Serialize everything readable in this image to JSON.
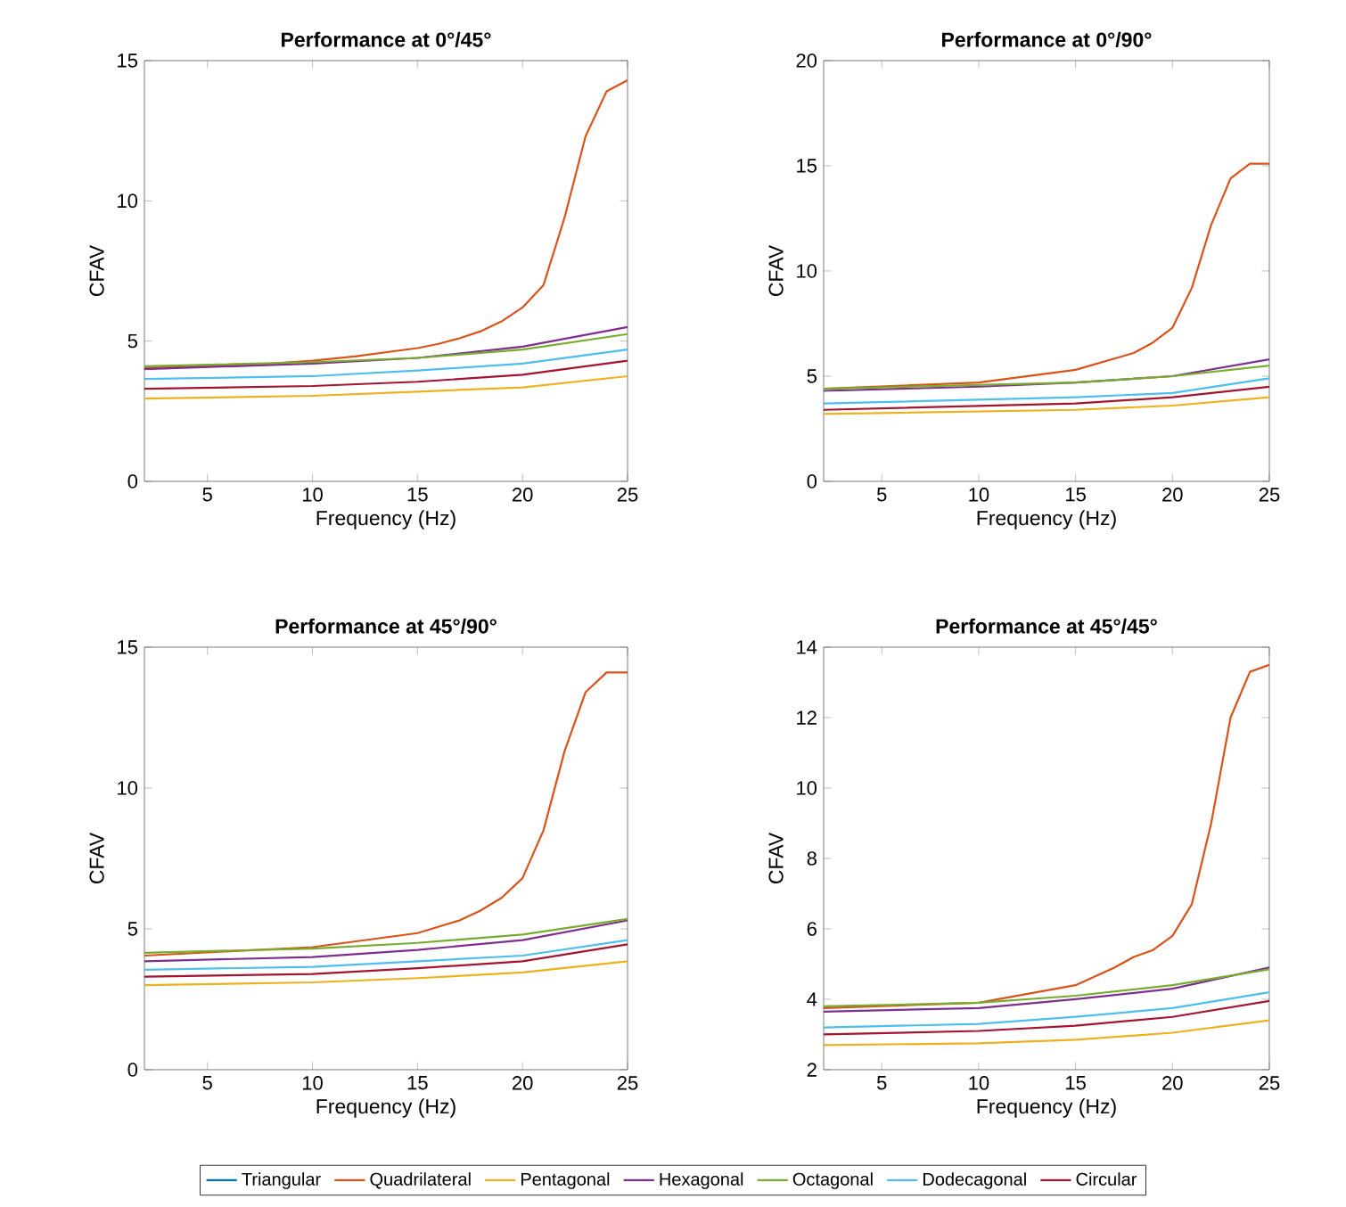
{
  "chart_data": [
    {
      "type": "line",
      "title": "Performance at 0°/45°",
      "xlabel": "Frequency (Hz)",
      "ylabel": "CFAV",
      "xlim": [
        2,
        25
      ],
      "ylim": [
        0,
        15
      ],
      "xticks": [
        5,
        10,
        15,
        20,
        25
      ],
      "yticks": [
        0,
        5,
        10,
        15
      ],
      "marker": "none",
      "line_style": "solid",
      "legend": false,
      "series": [
        {
          "color": "#d95319",
          "x": [
            2,
            5,
            8,
            10,
            12,
            14,
            15,
            16,
            17,
            18,
            19,
            20,
            21,
            22,
            23,
            24,
            25
          ],
          "values": [
            4.05,
            4.1,
            4.2,
            4.3,
            4.45,
            4.65,
            4.75,
            4.9,
            5.1,
            5.35,
            5.7,
            6.2,
            7.0,
            9.4,
            12.3,
            13.9,
            14.3
          ]
        },
        {
          "color": "#edb120",
          "x": [
            2,
            10,
            15,
            20,
            25
          ],
          "values": [
            2.95,
            3.05,
            3.2,
            3.35,
            3.75
          ]
        },
        {
          "color": "#7e2f8e",
          "x": [
            2,
            10,
            15,
            20,
            25
          ],
          "values": [
            4.0,
            4.2,
            4.4,
            4.8,
            5.5
          ]
        },
        {
          "color": "#77ac30",
          "x": [
            2,
            10,
            15,
            20,
            25
          ],
          "values": [
            4.1,
            4.25,
            4.4,
            4.7,
            5.25
          ]
        },
        {
          "color": "#4dbeee",
          "x": [
            2,
            10,
            15,
            20,
            25
          ],
          "values": [
            3.65,
            3.75,
            3.95,
            4.2,
            4.7
          ]
        },
        {
          "color": "#a2142f",
          "x": [
            2,
            10,
            15,
            20,
            25
          ],
          "values": [
            3.3,
            3.4,
            3.55,
            3.8,
            4.3
          ]
        }
      ]
    },
    {
      "type": "line",
      "title": "Performance at 0°/90°",
      "xlabel": "Frequency (Hz)",
      "ylabel": "CFAV",
      "xlim": [
        2,
        25
      ],
      "ylim": [
        0,
        20
      ],
      "xticks": [
        5,
        10,
        15,
        20,
        25
      ],
      "yticks": [
        0,
        5,
        10,
        15,
        20
      ],
      "marker": "none",
      "line_style": "solid",
      "legend": false,
      "series": [
        {
          "color": "#d95319",
          "x": [
            2,
            10,
            15,
            18,
            19,
            20,
            21,
            22,
            23,
            24,
            25
          ],
          "values": [
            4.4,
            4.7,
            5.3,
            6.1,
            6.6,
            7.3,
            9.2,
            12.2,
            14.4,
            15.1,
            15.1
          ]
        },
        {
          "color": "#edb120",
          "x": [
            2,
            15,
            20,
            25
          ],
          "values": [
            3.2,
            3.4,
            3.6,
            4.0
          ]
        },
        {
          "color": "#7e2f8e",
          "x": [
            2,
            10,
            15,
            20,
            25
          ],
          "values": [
            4.3,
            4.5,
            4.7,
            5.0,
            5.8
          ]
        },
        {
          "color": "#77ac30",
          "x": [
            2,
            15,
            20,
            25
          ],
          "values": [
            4.4,
            4.7,
            5.0,
            5.5
          ]
        },
        {
          "color": "#4dbeee",
          "x": [
            2,
            15,
            20,
            25
          ],
          "values": [
            3.7,
            4.0,
            4.2,
            4.9
          ]
        },
        {
          "color": "#a2142f",
          "x": [
            2,
            15,
            20,
            25
          ],
          "values": [
            3.4,
            3.7,
            4.0,
            4.5
          ]
        }
      ]
    },
    {
      "type": "line",
      "title": "Performance at 45°/90°",
      "xlabel": "Frequency (Hz)",
      "ylabel": "CFAV",
      "xlim": [
        2,
        25
      ],
      "ylim": [
        0,
        15
      ],
      "xticks": [
        5,
        10,
        15,
        20,
        25
      ],
      "yticks": [
        0,
        5,
        10,
        15
      ],
      "marker": "none",
      "line_style": "solid",
      "legend": false,
      "series": [
        {
          "color": "#d95319",
          "x": [
            2,
            10,
            15,
            17,
            18,
            19,
            20,
            21,
            22,
            23,
            24,
            25
          ],
          "values": [
            4.05,
            4.35,
            4.85,
            5.3,
            5.65,
            6.1,
            6.8,
            8.5,
            11.3,
            13.4,
            14.1,
            14.1
          ]
        },
        {
          "color": "#edb120",
          "x": [
            2,
            10,
            15,
            20,
            25
          ],
          "values": [
            3.0,
            3.1,
            3.25,
            3.45,
            3.85
          ]
        },
        {
          "color": "#7e2f8e",
          "x": [
            2,
            10,
            15,
            20,
            25
          ],
          "values": [
            3.85,
            4.0,
            4.25,
            4.6,
            5.3
          ]
        },
        {
          "color": "#77ac30",
          "x": [
            2,
            10,
            15,
            20,
            25
          ],
          "values": [
            4.15,
            4.3,
            4.5,
            4.8,
            5.35
          ]
        },
        {
          "color": "#4dbeee",
          "x": [
            2,
            10,
            15,
            20,
            25
          ],
          "values": [
            3.55,
            3.65,
            3.85,
            4.05,
            4.6
          ]
        },
        {
          "color": "#a2142f",
          "x": [
            2,
            10,
            15,
            20,
            25
          ],
          "values": [
            3.3,
            3.4,
            3.6,
            3.85,
            4.45
          ]
        }
      ]
    },
    {
      "type": "line",
      "title": "Performance at 45°/45°",
      "xlabel": "Frequency (Hz)",
      "ylabel": "CFAV",
      "xlim": [
        2,
        25
      ],
      "ylim": [
        2,
        14
      ],
      "xticks": [
        5,
        10,
        15,
        20,
        25
      ],
      "yticks": [
        2,
        4,
        6,
        8,
        10,
        12,
        14
      ],
      "marker": "none",
      "line_style": "solid",
      "legend": "bottom",
      "series": [
        {
          "name": "Triangular",
          "color": "#0072bd"
        },
        {
          "name": "Quadrilateral",
          "color": "#d95319",
          "x": [
            2,
            10,
            15,
            17,
            18,
            19,
            20,
            21,
            22,
            23,
            24,
            25
          ],
          "values": [
            3.75,
            3.9,
            4.4,
            4.9,
            5.2,
            5.4,
            5.8,
            6.7,
            9.0,
            12.0,
            13.3,
            13.5
          ]
        },
        {
          "name": "Pentagonal",
          "color": "#edb120",
          "x": [
            2,
            10,
            15,
            20,
            25
          ],
          "values": [
            2.7,
            2.75,
            2.85,
            3.05,
            3.4
          ]
        },
        {
          "name": "Hexagonal",
          "color": "#7e2f8e",
          "x": [
            2,
            10,
            15,
            20,
            25
          ],
          "values": [
            3.65,
            3.75,
            4.0,
            4.3,
            4.9
          ]
        },
        {
          "name": "Octagonal",
          "color": "#77ac30",
          "x": [
            2,
            10,
            15,
            20,
            25
          ],
          "values": [
            3.8,
            3.9,
            4.1,
            4.4,
            4.85
          ]
        },
        {
          "name": "Dodecagonal",
          "color": "#4dbeee",
          "x": [
            2,
            10,
            15,
            20,
            25
          ],
          "values": [
            3.2,
            3.3,
            3.5,
            3.75,
            4.2
          ]
        },
        {
          "name": "Circular",
          "color": "#a2142f",
          "x": [
            2,
            10,
            15,
            20,
            25
          ],
          "values": [
            3.0,
            3.1,
            3.25,
            3.5,
            3.95
          ]
        }
      ]
    }
  ]
}
